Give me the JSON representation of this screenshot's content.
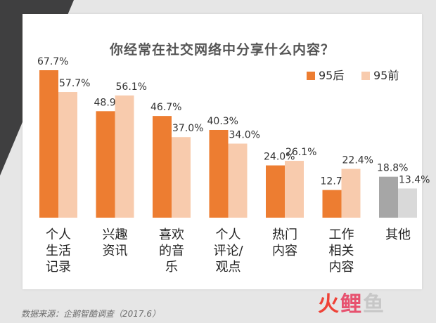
{
  "chart_data": {
    "type": "bar",
    "title": "你经常在社交网络中分享什么内容？",
    "categories": [
      [
        "个人",
        "生活",
        "记录"
      ],
      [
        "兴趣",
        "资讯"
      ],
      [
        "喜欢",
        "的音",
        "乐"
      ],
      [
        "个人",
        "评论/",
        "观点"
      ],
      [
        "热门",
        "内容"
      ],
      [
        "工作",
        "相关",
        "内容"
      ],
      [
        "其他"
      ]
    ],
    "series": [
      {
        "name": "95后",
        "values": [
          67.7,
          48.9,
          46.7,
          40.3,
          24.0,
          12.7,
          18.8
        ],
        "color": "#ed7d31"
      },
      {
        "name": "95前",
        "values": [
          57.7,
          56.1,
          37.0,
          34.0,
          26.1,
          22.4,
          13.4
        ],
        "color": "#f8cbad"
      }
    ],
    "value_labels": [
      [
        "67.7%",
        "48.9%",
        "46.7%",
        "40.3%",
        "24.0%",
        "12.7%",
        "18.8%"
      ],
      [
        "57.7%",
        "56.1%",
        "37.0%",
        "34.0%",
        "26.1%",
        "22.4%",
        "13.4%"
      ]
    ],
    "other_colors": [
      "#a6a6a6",
      "#d9d9d9"
    ],
    "ylim": [
      0,
      75
    ],
    "legend_position": "top-right",
    "grid": false,
    "xlabel": "",
    "ylabel": ""
  },
  "source": "数据来源：企鹅智酷调查（2017.6）",
  "watermark": {
    "part1": "火",
    "part2": "鲤",
    "part3": "鱼"
  }
}
